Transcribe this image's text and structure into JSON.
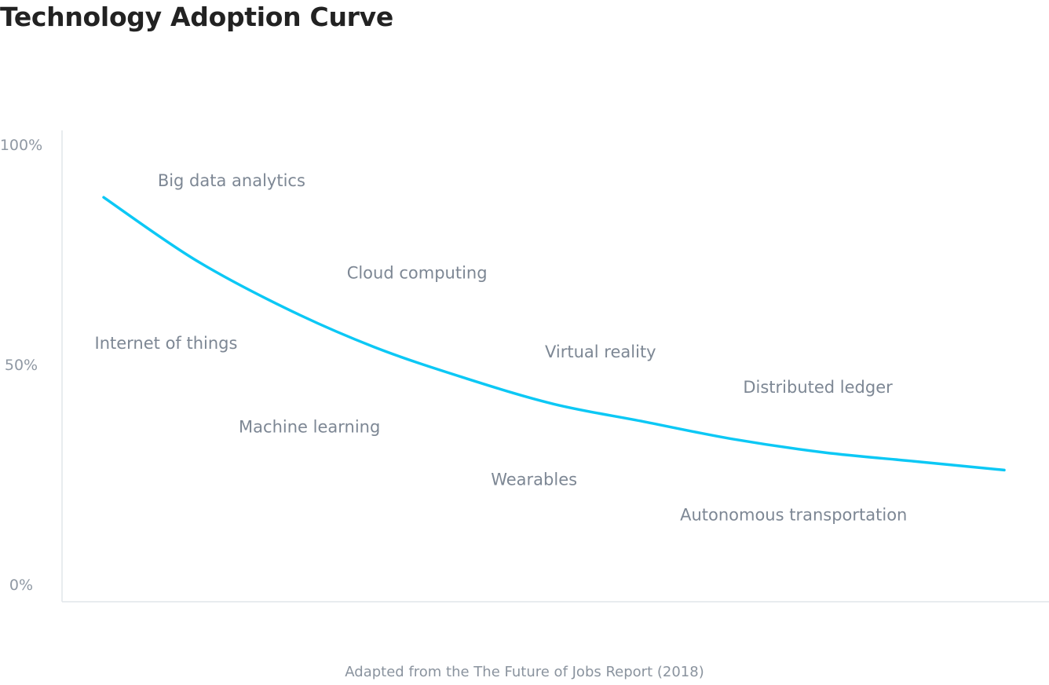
{
  "title": "Technology Adoption Curve",
  "caption": "Adapted from the The Future of Jobs Report (2018)",
  "colors": {
    "curve": "#0cc8f5",
    "axis": "#e1e5ea",
    "text": "#7d8794",
    "title": "#222222"
  },
  "chart_data": {
    "type": "line",
    "title": "Technology Adoption Curve",
    "xlabel": "",
    "ylabel": "",
    "ylim": [
      0,
      100
    ],
    "yticks": [
      "0%",
      "50%",
      "100%"
    ],
    "grid": false,
    "curve": {
      "x": [
        0,
        0.1,
        0.2,
        0.3,
        0.4,
        0.5,
        0.6,
        0.7,
        0.8,
        0.9,
        1
      ],
      "y": [
        88,
        74,
        63,
        54,
        47,
        41,
        37,
        33,
        30,
        28,
        26
      ]
    },
    "labels": [
      {
        "text": "Big data analytics",
        "x": 0.06,
        "y": 92
      },
      {
        "text": "Cloud computing",
        "x": 0.27,
        "y": 71
      },
      {
        "text": "Internet of things",
        "x": -0.01,
        "y": 55
      },
      {
        "text": "Virtual reality",
        "x": 0.49,
        "y": 53
      },
      {
        "text": "Distributed ledger",
        "x": 0.71,
        "y": 45
      },
      {
        "text": "Machine learning",
        "x": 0.15,
        "y": 36
      },
      {
        "text": "Wearables",
        "x": 0.43,
        "y": 24
      },
      {
        "text": "Autonomous transportation",
        "x": 0.64,
        "y": 16
      }
    ]
  }
}
